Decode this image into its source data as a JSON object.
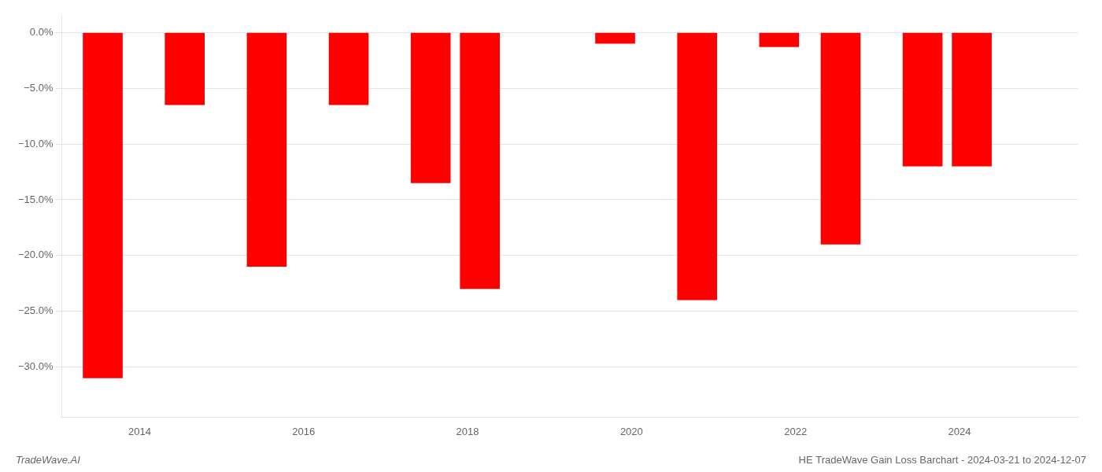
{
  "chart_data": {
    "type": "bar",
    "x": [
      2013.3,
      2014.3,
      2015.3,
      2016.3,
      2017.3,
      2017.9,
      2019.55,
      2020.55,
      2021.55,
      2022.3,
      2023.3,
      2023.9
    ],
    "values": [
      -0.31,
      -0.065,
      -0.21,
      -0.065,
      -0.135,
      -0.23,
      -0.01,
      -0.24,
      -0.013,
      -0.19,
      -0.12,
      -0.12
    ],
    "color": "#ff0000",
    "xlim": [
      2012.8,
      2025.2
    ],
    "xticks": [
      {
        "value": 2013.75,
        "label": "2014"
      },
      {
        "value": 2015.75,
        "label": "2016"
      },
      {
        "value": 2017.75,
        "label": "2018"
      },
      {
        "value": 2019.75,
        "label": "2020"
      },
      {
        "value": 2021.75,
        "label": "2022"
      },
      {
        "value": 2023.75,
        "label": "2024"
      }
    ],
    "ylim": [
      -0.345,
      0.015
    ],
    "yticks": [
      {
        "value": 0.0,
        "label": "0.0%"
      },
      {
        "value": -0.05,
        "label": "−5.0%"
      },
      {
        "value": -0.1,
        "label": "−10.0%"
      },
      {
        "value": -0.15,
        "label": "−15.0%"
      },
      {
        "value": -0.2,
        "label": "−20.0%"
      },
      {
        "value": -0.25,
        "label": "−25.0%"
      },
      {
        "value": -0.3,
        "label": "−30.0%"
      }
    ],
    "grid": true,
    "annotations": [
      "TradeWave.AI",
      "HE TradeWave Gain Loss Barchart - 2024-03-21 to 2024-12-07"
    ]
  }
}
